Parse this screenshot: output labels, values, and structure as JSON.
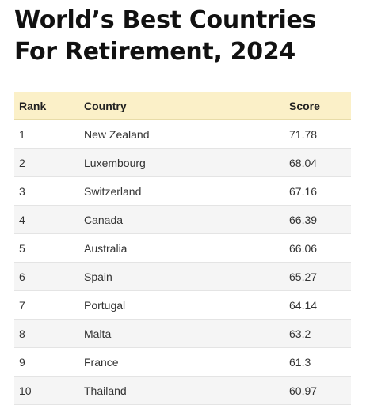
{
  "title": "World’s Best Countries For Retirement, 2024",
  "table": {
    "headers": {
      "rank": "Rank",
      "country": "Country",
      "score": "Score"
    },
    "rows": [
      {
        "rank": "1",
        "country": "New Zealand",
        "score": "71.78"
      },
      {
        "rank": "2",
        "country": "Luxembourg",
        "score": "68.04"
      },
      {
        "rank": "3",
        "country": "Switzerland",
        "score": "67.16"
      },
      {
        "rank": "4",
        "country": "Canada",
        "score": "66.39"
      },
      {
        "rank": "5",
        "country": "Australia",
        "score": "66.06"
      },
      {
        "rank": "6",
        "country": "Spain",
        "score": "65.27"
      },
      {
        "rank": "7",
        "country": "Portugal",
        "score": "64.14"
      },
      {
        "rank": "8",
        "country": "Malta",
        "score": "63.2"
      },
      {
        "rank": "9",
        "country": "France",
        "score": "61.3"
      },
      {
        "rank": "10",
        "country": "Thailand",
        "score": "60.97"
      }
    ]
  },
  "colors": {
    "header_background": "#fbf0c8",
    "stripe_background": "#f5f5f5"
  }
}
